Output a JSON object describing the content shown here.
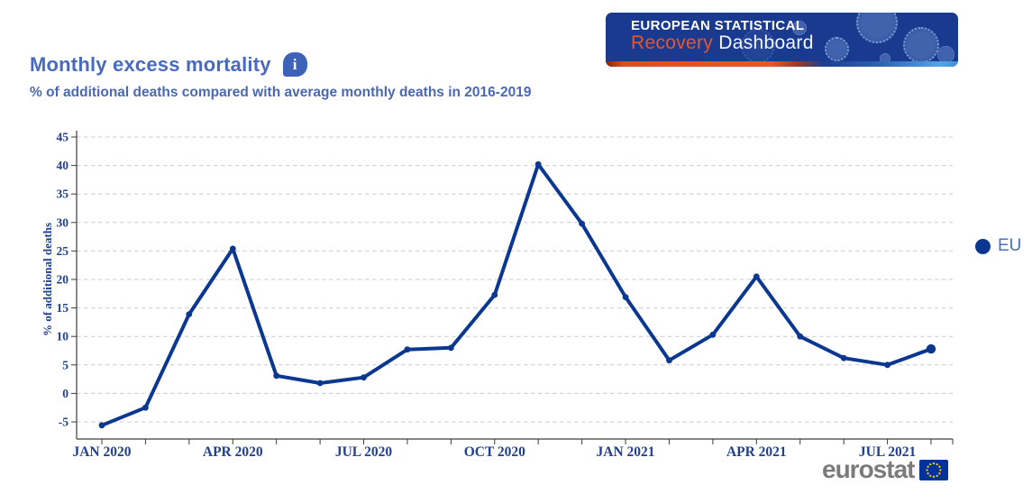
{
  "header": {
    "title": "Monthly excess mortality",
    "subtitle": "% of additional deaths compared with average monthly deaths in 2016-2019"
  },
  "banner": {
    "line1": "EUROPEAN STATISTICAL",
    "line2_accent": "Recovery",
    "line2_rest": "Dashboard"
  },
  "legend": {
    "items": [
      {
        "label": "EU",
        "color": "#0a3790"
      }
    ]
  },
  "footer": {
    "brand": "eurostat"
  },
  "colors": {
    "title_blue": "#4a6ac0",
    "axis_text": "#21408f",
    "line": "#0a3790",
    "grid": "#cccccc",
    "axis_line": "#3c3c3c",
    "banner_bg": "#1a3a8f",
    "banner_accent": "#e4572e"
  },
  "chart_data": {
    "type": "line",
    "title": "Monthly excess mortality",
    "subtitle": "% of additional deaths compared with average monthly deaths in 2016-2019",
    "ylabel": "% of additional deaths",
    "ylim": [
      -5,
      45
    ],
    "ytick_step": 5,
    "grid": "horizontal-dashed",
    "legend_position": "right",
    "categories": [
      "JAN 2020",
      "FEB 2020",
      "MAR 2020",
      "APR 2020",
      "MAY 2020",
      "JUN 2020",
      "JUL 2020",
      "AUG 2020",
      "SEP 2020",
      "OCT 2020",
      "NOV 2020",
      "DEC 2020",
      "JAN 2021",
      "FEB 2021",
      "MAR 2021",
      "APR 2021",
      "MAY 2021",
      "JUN 2021",
      "JUL 2021",
      "AUG 2021"
    ],
    "x_tick_labels": [
      "JAN 2020",
      "APR 2020",
      "JUL 2020",
      "OCT 2020",
      "JAN 2021",
      "APR 2021",
      "JUL 2021"
    ],
    "x_tick_indices": [
      0,
      3,
      6,
      9,
      12,
      15,
      18
    ],
    "series": [
      {
        "name": "EU",
        "color": "#0a3790",
        "values": [
          -5.6,
          -2.5,
          13.9,
          25.4,
          3.1,
          1.8,
          2.8,
          7.7,
          8.0,
          17.3,
          40.2,
          29.8,
          16.9,
          5.8,
          10.3,
          20.5,
          10.0,
          6.2,
          5.0,
          7.8
        ]
      }
    ]
  }
}
